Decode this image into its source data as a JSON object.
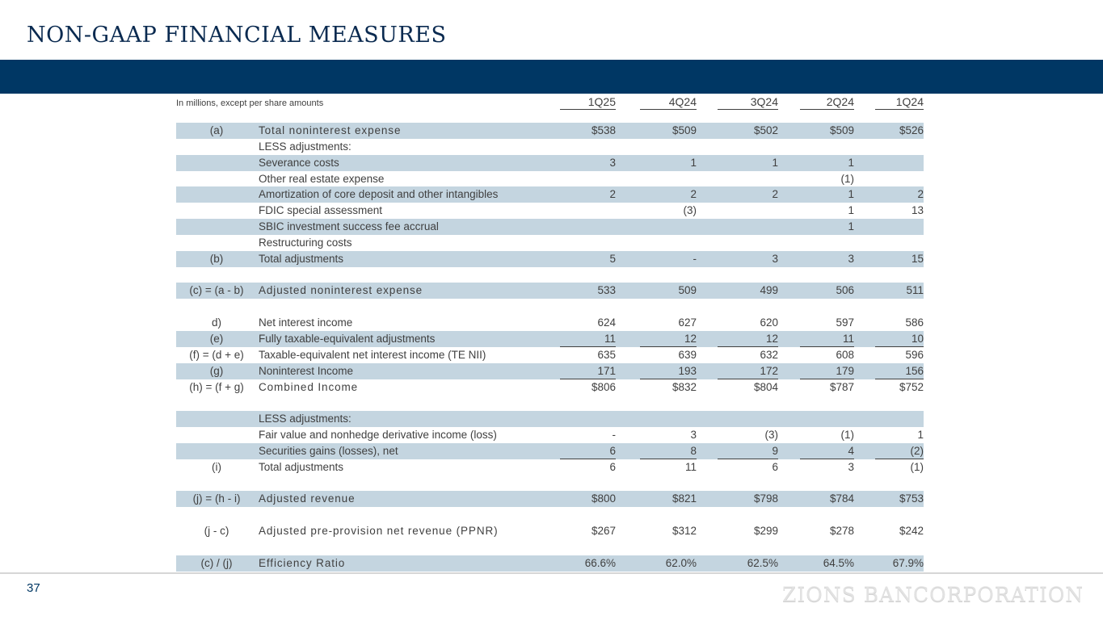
{
  "title": "NON-GAAP FINANCIAL MEASURES",
  "units_note": "In millions, except per share amounts",
  "columns": [
    "1Q25",
    "4Q24",
    "3Q24",
    "2Q24",
    "1Q24"
  ],
  "rows": [
    {
      "ref": "(a)",
      "label": "Total noninterest expense",
      "values": [
        "$538",
        "$509",
        "$502",
        "$509",
        "$526"
      ],
      "shaded": true,
      "spaced": true
    },
    {
      "ref": "",
      "label": "LESS adjustments:",
      "values": [
        "",
        "",
        "",
        "",
        ""
      ]
    },
    {
      "ref": "",
      "label": "Severance costs",
      "values": [
        "3",
        "1",
        "1",
        "1",
        ""
      ],
      "shaded": true
    },
    {
      "ref": "",
      "label": "Other real estate expense",
      "values": [
        "",
        "",
        "",
        "(1)",
        ""
      ]
    },
    {
      "ref": "",
      "label": "Amortization of core deposit and other intangibles",
      "values": [
        "2",
        "2",
        "2",
        "1",
        "2"
      ],
      "shaded": true
    },
    {
      "ref": "",
      "label": "FDIC special assessment",
      "values": [
        "",
        "(3)",
        "",
        "1",
        "13"
      ]
    },
    {
      "ref": "",
      "label": "SBIC investment success fee accrual",
      "values": [
        "",
        "",
        "",
        "1",
        ""
      ],
      "shaded": true
    },
    {
      "ref": "",
      "label": "Restructuring costs",
      "values": [
        "",
        "",
        "",
        "",
        ""
      ]
    },
    {
      "ref": "(b)",
      "label": "Total adjustments",
      "values": [
        "5",
        "-",
        "3",
        "3",
        "15"
      ],
      "shaded": true
    },
    {
      "ref": "",
      "label": "",
      "values": [
        "",
        "",
        "",
        "",
        ""
      ]
    },
    {
      "ref": "(c) = (a - b)",
      "label": "Adjusted noninterest expense",
      "values": [
        "533",
        "509",
        "499",
        "506",
        "511"
      ],
      "shaded": true,
      "spaced": true
    },
    {
      "ref": "",
      "label": "",
      "values": [
        "",
        "",
        "",
        "",
        ""
      ]
    },
    {
      "ref": "d)",
      "label": "Net interest income",
      "values": [
        "624",
        "627",
        "620",
        "597",
        "586"
      ]
    },
    {
      "ref": "(e)",
      "label": "Fully taxable-equivalent adjustments",
      "values": [
        "11",
        "12",
        "12",
        "11",
        "10"
      ],
      "shaded": true,
      "underline": true
    },
    {
      "ref": "(f) = (d + e)",
      "label": "Taxable-equivalent net interest income (TE NII)",
      "values": [
        "635",
        "639",
        "632",
        "608",
        "596"
      ]
    },
    {
      "ref": "(g)",
      "label": "Noninterest Income",
      "values": [
        "171",
        "193",
        "172",
        "179",
        "156"
      ],
      "shaded": true,
      "underline": true
    },
    {
      "ref": "(h) = (f + g)",
      "label": "Combined Income",
      "values": [
        "$806",
        "$832",
        "$804",
        "$787",
        "$752"
      ],
      "spaced": true
    },
    {
      "ref": "",
      "label": "",
      "values": [
        "",
        "",
        "",
        "",
        ""
      ]
    },
    {
      "ref": "",
      "label": "LESS adjustments:",
      "values": [
        "",
        "",
        "",
        "",
        ""
      ],
      "shaded": true
    },
    {
      "ref": "",
      "label": "Fair value and nonhedge derivative income (loss)",
      "values": [
        "-",
        "3",
        "(3)",
        "(1)",
        "1"
      ]
    },
    {
      "ref": "",
      "label": "Securities gains (losses), net",
      "values": [
        "6",
        "8",
        "9",
        "4",
        "(2)"
      ],
      "shaded": true,
      "underline": true
    },
    {
      "ref": "(i)",
      "label": "Total adjustments",
      "values": [
        "6",
        "11",
        "6",
        "3",
        "(1)"
      ]
    },
    {
      "ref": "",
      "label": "",
      "values": [
        "",
        "",
        "",
        "",
        ""
      ]
    },
    {
      "ref": "(j) = (h - i)",
      "label": "Adjusted revenue",
      "values": [
        "$800",
        "$821",
        "$798",
        "$784",
        "$753"
      ],
      "shaded": true,
      "spaced": true
    },
    {
      "ref": "",
      "label": "",
      "values": [
        "",
        "",
        "",
        "",
        ""
      ]
    },
    {
      "ref": "(j - c)",
      "label": "Adjusted pre-provision net revenue (PPNR)",
      "values": [
        "$267",
        "$312",
        "$299",
        "$278",
        "$242"
      ],
      "spaced": true
    },
    {
      "ref": "",
      "label": "",
      "values": [
        "",
        "",
        "",
        "",
        ""
      ]
    },
    {
      "ref": "(c) / (j)",
      "label": "Efficiency Ratio",
      "values": [
        "66.6%",
        "62.0%",
        "62.5%",
        "64.5%",
        "67.9%"
      ],
      "shaded": true,
      "spaced": true
    }
  ],
  "footer": {
    "page_number": "37",
    "logo_text": "ZIONS BANCORPORATION"
  },
  "colors": {
    "brand_navy": "#003764",
    "row_shade": "#c4d5e0"
  }
}
